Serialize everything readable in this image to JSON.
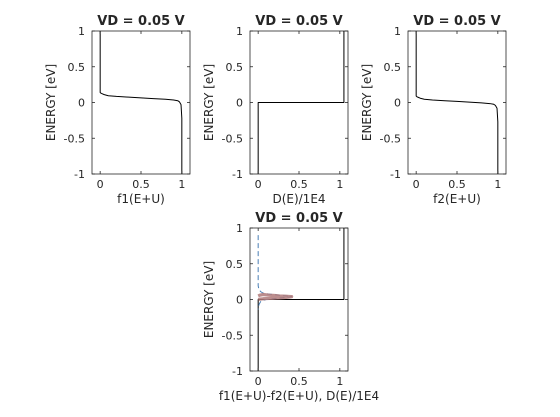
{
  "chart_data": [
    {
      "type": "line",
      "title": "VD = 0.05 V",
      "xlabel": "f1(E+U)",
      "ylabel": "ENERGY  [eV]",
      "xlim": [
        -0.1,
        1.1
      ],
      "ylim": [
        -1,
        1
      ],
      "xticks": [
        "0",
        "0.5",
        "1"
      ],
      "yticks": [
        "-1",
        "-0.5",
        "0",
        "0.5",
        "1"
      ],
      "grid": false,
      "series": [
        {
          "color": "#000000",
          "style": "solid",
          "x": [
            0,
            0,
            0.01,
            0.03,
            0.05,
            0.1,
            0.2,
            0.35,
            0.5,
            0.65,
            0.8,
            0.9,
            0.95,
            0.97,
            0.99,
            1,
            1
          ],
          "y": [
            1,
            0.14,
            0.13,
            0.12,
            0.11,
            0.095,
            0.085,
            0.075,
            0.065,
            0.055,
            0.045,
            0.035,
            0.025,
            0.01,
            -0.03,
            -0.22,
            -1
          ]
        }
      ]
    },
    {
      "type": "line",
      "title": "VD = 0.05 V",
      "xlabel": "D(E)/1E4",
      "ylabel": "ENERGY  [eV]",
      "xlim": [
        -0.1,
        1.1
      ],
      "ylim": [
        -1,
        1
      ],
      "xticks": [
        "0",
        "0.5",
        "1"
      ],
      "yticks": [
        "-1",
        "-0.5",
        "0",
        "0.5",
        "1"
      ],
      "grid": false,
      "series": [
        {
          "color": "#000000",
          "style": "solid",
          "x": [
            0,
            0,
            1.05,
            1.05
          ],
          "y": [
            -1,
            0,
            0,
            1
          ]
        }
      ]
    },
    {
      "type": "line",
      "title": "VD = 0.05 V",
      "xlabel": "f2(E+U)",
      "ylabel": "ENERGY  [eV]",
      "xlim": [
        -0.1,
        1.1
      ],
      "ylim": [
        -1,
        1
      ],
      "xticks": [
        "0",
        "0.5",
        "1"
      ],
      "yticks": [
        "-1",
        "-0.5",
        "0",
        "0.5",
        "1"
      ],
      "grid": false,
      "series": [
        {
          "color": "#000000",
          "style": "solid",
          "x": [
            0,
            0,
            0.01,
            0.03,
            0.05,
            0.1,
            0.2,
            0.35,
            0.5,
            0.65,
            0.8,
            0.9,
            0.95,
            0.97,
            0.99,
            1,
            1
          ],
          "y": [
            1,
            0.09,
            0.08,
            0.07,
            0.06,
            0.045,
            0.035,
            0.025,
            0.015,
            0.005,
            -0.005,
            -0.015,
            -0.025,
            -0.04,
            -0.08,
            -0.27,
            -1
          ]
        }
      ]
    },
    {
      "type": "line",
      "title": "VD = 0.05 V",
      "xlabel": "f1(E+U)-f2(E+U), D(E)/1E4",
      "ylabel": "ENERGY  [eV]",
      "xlim": [
        -0.1,
        1.1
      ],
      "ylim": [
        -1,
        1
      ],
      "xticks": [
        "0",
        "0.5",
        "1"
      ],
      "yticks": [
        "-1",
        "-0.5",
        "0",
        "0.5",
        "1"
      ],
      "grid": false,
      "series": [
        {
          "color": "#000000",
          "style": "solid",
          "x": [
            0,
            0,
            1.05,
            1.05
          ],
          "y": [
            -1,
            0,
            0,
            1
          ]
        },
        {
          "color": "#4a7fb5",
          "style": "dashed",
          "x": [
            0,
            0,
            0.01,
            0.03,
            0.06,
            0.1,
            0.14,
            0.18,
            0.22,
            0.26,
            0.3,
            0.34,
            0.38,
            0.41,
            0.38,
            0.34,
            0.3,
            0.26,
            0.22,
            0.18,
            0.14,
            0.1,
            0.06,
            0.03,
            0.01,
            0,
            0
          ],
          "y": [
            0.9,
            0.19,
            0.14,
            0.11,
            0.09,
            0.08,
            0.075,
            0.07,
            0.065,
            0.06,
            0.055,
            0.05,
            0.045,
            0.04,
            0.035,
            0.03,
            0.025,
            0.02,
            0.015,
            0.01,
            0.005,
            0,
            -0.01,
            -0.03,
            -0.07,
            -0.12,
            -0.14
          ]
        },
        {
          "color": "#b07a7a",
          "style": "solid",
          "x": [
            0,
            0.02,
            0.06,
            0.1,
            0.14,
            0.18,
            0.22,
            0.26,
            0.3,
            0.34,
            0.38,
            0.41,
            0.38,
            0.34,
            0.3,
            0.26,
            0.22,
            0.18,
            0.14,
            0.1,
            0.06,
            0.02,
            0
          ],
          "y": [
            0.05,
            0.06,
            0.07,
            0.065,
            0.06,
            0.058,
            0.055,
            0.05,
            0.048,
            0.045,
            0.042,
            0.04,
            0.035,
            0.03,
            0.026,
            0.022,
            0.02,
            0.017,
            0.015,
            0.013,
            0.01,
            0.005,
            0
          ]
        }
      ]
    }
  ]
}
